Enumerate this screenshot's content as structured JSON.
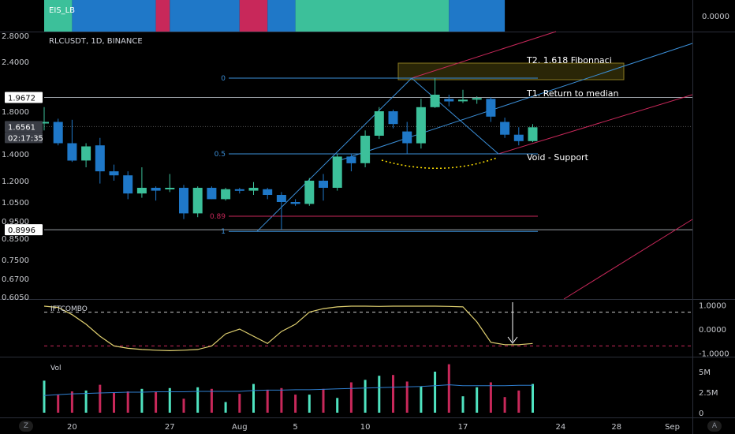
{
  "colors": {
    "bg": "#000000",
    "bull": "#3cc09a",
    "bear": "#1f78c8",
    "pink": "#c8285a",
    "text": "#d1d4dc",
    "axis_text": "#c7c9ce",
    "fib": "#3b8fd8",
    "fib_red": "#c8285a",
    "line_gray": "#9aa0a6",
    "ift": "#e0d070",
    "vol_ma": "#2f7fd0",
    "grid": "#2a2e39"
  },
  "header": {
    "symbol_line": "RLCUSDT, 1D, BINANCE"
  },
  "eis": {
    "label": "EIS_LB",
    "axis_value": "0.0000",
    "segments": [
      {
        "color": "#3cc09a",
        "n": 2
      },
      {
        "color": "#1f78c8",
        "n": 6
      },
      {
        "color": "#c8285a",
        "n": 1
      },
      {
        "color": "#1f78c8",
        "n": 5
      },
      {
        "color": "#c8285a",
        "n": 2
      },
      {
        "color": "#1f78c8",
        "n": 2
      },
      {
        "color": "#3cc09a",
        "n": 11
      },
      {
        "color": "#1f78c8",
        "n": 4
      }
    ]
  },
  "price_axis": {
    "ticks": [
      {
        "v": 2.8,
        "label": "2.8000"
      },
      {
        "v": 2.4,
        "label": "2.4000"
      },
      {
        "v": 1.8,
        "label": "1.8000"
      },
      {
        "v": 1.4,
        "label": "1.4000"
      },
      {
        "v": 1.2,
        "label": "1.2000"
      },
      {
        "v": 1.05,
        "label": "1.0500"
      },
      {
        "v": 0.95,
        "label": "0.9500"
      },
      {
        "v": 0.85,
        "label": "0.8500"
      },
      {
        "v": 0.75,
        "label": "0.7500"
      },
      {
        "v": 0.67,
        "label": "0.6700"
      },
      {
        "v": 0.605,
        "label": "0.6050"
      }
    ],
    "badges": [
      {
        "v": 1.9672,
        "label": "1.9672",
        "style": "white"
      },
      {
        "v": 1.6561,
        "label": "1.6561",
        "style": "gray"
      },
      {
        "v": 0.8996,
        "label": "0.8996",
        "style": "white"
      }
    ],
    "countdown": "02:17:35"
  },
  "chart_data": {
    "type": "candlestick",
    "timeframe": "1D",
    "x_axis_labels": [
      {
        "label": "20",
        "i": 2
      },
      {
        "label": "27",
        "i": 9
      },
      {
        "label": "Aug",
        "i": 14
      },
      {
        "label": "5",
        "i": 18
      },
      {
        "label": "10",
        "i": 23
      },
      {
        "label": "17",
        "i": 30
      },
      {
        "label": "24",
        "i": 37
      },
      {
        "label": "28",
        "i": 41
      },
      {
        "label": "Sep",
        "i": 45
      }
    ],
    "candles": [
      {
        "o": 1.7,
        "h": 1.85,
        "l": 1.62,
        "c": 1.7
      },
      {
        "o": 1.7,
        "h": 1.73,
        "l": 1.48,
        "c": 1.5
      },
      {
        "o": 1.5,
        "h": 1.72,
        "l": 1.34,
        "c": 1.35
      },
      {
        "o": 1.35,
        "h": 1.5,
        "l": 1.3,
        "c": 1.47
      },
      {
        "o": 1.48,
        "h": 1.55,
        "l": 1.18,
        "c": 1.27
      },
      {
        "o": 1.27,
        "h": 1.32,
        "l": 1.2,
        "c": 1.24
      },
      {
        "o": 1.24,
        "h": 1.27,
        "l": 1.07,
        "c": 1.11
      },
      {
        "o": 1.11,
        "h": 1.3,
        "l": 1.08,
        "c": 1.15
      },
      {
        "o": 1.15,
        "h": 1.16,
        "l": 1.06,
        "c": 1.13
      },
      {
        "o": 1.14,
        "h": 1.25,
        "l": 1.12,
        "c": 1.15
      },
      {
        "o": 1.15,
        "h": 1.17,
        "l": 0.96,
        "c": 0.99
      },
      {
        "o": 0.99,
        "h": 1.16,
        "l": 0.97,
        "c": 1.15
      },
      {
        "o": 1.15,
        "h": 1.16,
        "l": 1.07,
        "c": 1.07
      },
      {
        "o": 1.07,
        "h": 1.15,
        "l": 1.06,
        "c": 1.14
      },
      {
        "o": 1.14,
        "h": 1.15,
        "l": 1.11,
        "c": 1.13
      },
      {
        "o": 1.13,
        "h": 1.19,
        "l": 1.1,
        "c": 1.15
      },
      {
        "o": 1.14,
        "h": 1.15,
        "l": 1.07,
        "c": 1.1
      },
      {
        "o": 1.1,
        "h": 1.12,
        "l": 0.9,
        "c": 1.05
      },
      {
        "o": 1.05,
        "h": 1.07,
        "l": 1.03,
        "c": 1.04
      },
      {
        "o": 1.04,
        "h": 1.22,
        "l": 1.03,
        "c": 1.2
      },
      {
        "o": 1.2,
        "h": 1.25,
        "l": 1.06,
        "c": 1.15
      },
      {
        "o": 1.15,
        "h": 1.4,
        "l": 1.13,
        "c": 1.38
      },
      {
        "o": 1.38,
        "h": 1.4,
        "l": 1.27,
        "c": 1.33
      },
      {
        "o": 1.33,
        "h": 1.62,
        "l": 1.3,
        "c": 1.57
      },
      {
        "o": 1.57,
        "h": 1.85,
        "l": 1.54,
        "c": 1.8
      },
      {
        "o": 1.8,
        "h": 1.82,
        "l": 1.64,
        "c": 1.68
      },
      {
        "o": 1.61,
        "h": 1.7,
        "l": 1.4,
        "c": 1.5
      },
      {
        "o": 1.5,
        "h": 1.95,
        "l": 1.45,
        "c": 1.85
      },
      {
        "o": 1.85,
        "h": 2.2,
        "l": 1.84,
        "c": 2.0
      },
      {
        "o": 1.95,
        "h": 2.0,
        "l": 1.86,
        "c": 1.92
      },
      {
        "o": 1.92,
        "h": 2.06,
        "l": 1.9,
        "c": 1.94
      },
      {
        "o": 1.94,
        "h": 1.98,
        "l": 1.89,
        "c": 1.96
      },
      {
        "o": 1.95,
        "h": 1.97,
        "l": 1.7,
        "c": 1.75
      },
      {
        "o": 1.7,
        "h": 1.74,
        "l": 1.55,
        "c": 1.58
      },
      {
        "o": 1.58,
        "h": 1.65,
        "l": 1.48,
        "c": 1.52
      },
      {
        "o": 1.52,
        "h": 1.68,
        "l": 1.51,
        "c": 1.65
      }
    ],
    "ift_combo": {
      "label": "IFTCOMBO",
      "axis": [
        {
          "v": 1,
          "label": "1.0000"
        },
        {
          "v": 0,
          "label": "0.0000"
        },
        {
          "v": -1,
          "label": "-1.0000"
        }
      ],
      "upper_ref": 0.7,
      "lower_ref": -0.7,
      "values": [
        0.95,
        0.9,
        0.6,
        0.2,
        -0.3,
        -0.7,
        -0.8,
        -0.85,
        -0.88,
        -0.9,
        -0.88,
        -0.85,
        -0.7,
        -0.2,
        0.0,
        -0.3,
        -0.6,
        -0.1,
        0.2,
        0.7,
        0.85,
        0.92,
        0.95,
        0.95,
        0.94,
        0.95,
        0.95,
        0.95,
        0.95,
        0.94,
        0.92,
        0.3,
        -0.55,
        -0.65,
        -0.65,
        -0.6
      ],
      "ylim": [
        -1.25,
        1.25
      ]
    },
    "volume": {
      "label": "Vol",
      "axis": [
        {
          "v": 5000000,
          "label": "5M"
        },
        {
          "v": 2500000,
          "label": "2.5M"
        },
        {
          "v": 0,
          "label": "0"
        }
      ],
      "values": [
        3.9,
        2.2,
        2.6,
        2.7,
        3.4,
        2.4,
        2.6,
        2.9,
        2.5,
        3.0,
        1.7,
        3.1,
        2.9,
        1.3,
        2.3,
        3.5,
        2.8,
        3.0,
        2.2,
        2.2,
        2.9,
        1.8,
        3.7,
        4.0,
        4.5,
        4.6,
        3.8,
        3.2,
        5.0,
        5.9,
        2.0,
        3.1,
        3.7,
        1.9,
        2.7,
        3.5
      ],
      "ma": [
        2.1,
        2.2,
        2.3,
        2.35,
        2.4,
        2.45,
        2.5,
        2.5,
        2.55,
        2.55,
        2.55,
        2.6,
        2.6,
        2.6,
        2.6,
        2.7,
        2.75,
        2.75,
        2.8,
        2.8,
        2.85,
        2.9,
        2.95,
        3.0,
        3.05,
        3.1,
        3.15,
        3.2,
        3.3,
        3.4,
        3.3,
        3.3,
        3.3,
        3.3,
        3.35,
        3.35
      ],
      "unit": "millions",
      "ylim": [
        0,
        6.2
      ]
    }
  },
  "fib": {
    "levels": [
      {
        "label": "0",
        "v": 2.2,
        "color": "fib"
      },
      {
        "label": "0.5",
        "v": 1.4,
        "color": "fib"
      },
      {
        "label": "0.89",
        "v": 0.975,
        "color": "fib_red"
      },
      {
        "label": "1",
        "v": 0.89,
        "color": "fib"
      }
    ]
  },
  "annotations": {
    "t2": "T2. 1.618 Fibonnaci",
    "t1": "T1. Return to median",
    "void": "Void - Support"
  }
}
